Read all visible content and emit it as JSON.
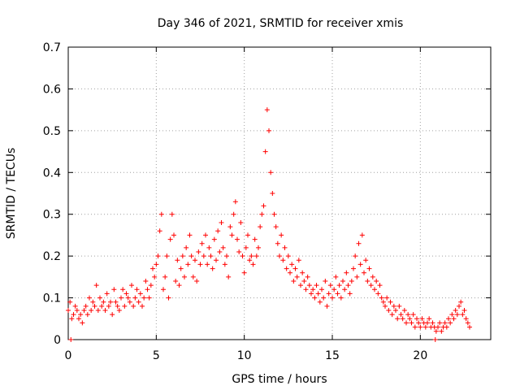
{
  "chart_data": {
    "type": "scatter",
    "title": "Day 346 of 2021, SRMTID for receiver xmis",
    "xlabel": "GPS time / hours",
    "ylabel": "SRMTID / TECUs",
    "xlim": [
      0,
      24
    ],
    "ylim": [
      0,
      0.7
    ],
    "xticks": [
      0,
      5,
      10,
      15,
      20
    ],
    "yticks": [
      0,
      0.1,
      0.2,
      0.3,
      0.4,
      0.5,
      0.6,
      0.7
    ],
    "xtick_labels": [
      "0",
      "5",
      "10",
      "15",
      "20"
    ],
    "ytick_labels": [
      "0",
      "0.1",
      "0.2",
      "0.3",
      "0.4",
      "0.5",
      "0.6",
      "0.7"
    ],
    "grid": true,
    "marker": "+",
    "series": [
      {
        "name": "SRMTID xmis",
        "color": "#ff0000",
        "points": [
          [
            0.0,
            0.07
          ],
          [
            0.1,
            0.09
          ],
          [
            0.2,
            0.05
          ],
          [
            0.3,
            0.06
          ],
          [
            0.4,
            0.08
          ],
          [
            0.5,
            0.07
          ],
          [
            0.6,
            0.05
          ],
          [
            0.7,
            0.06
          ],
          [
            0.8,
            0.04
          ],
          [
            0.9,
            0.07
          ],
          [
            1.0,
            0.08
          ],
          [
            1.1,
            0.06
          ],
          [
            1.2,
            0.1
          ],
          [
            1.3,
            0.07
          ],
          [
            1.4,
            0.09
          ],
          [
            1.5,
            0.08
          ],
          [
            1.6,
            0.13
          ],
          [
            1.7,
            0.07
          ],
          [
            1.8,
            0.1
          ],
          [
            1.9,
            0.08
          ],
          [
            2.0,
            0.09
          ],
          [
            2.1,
            0.07
          ],
          [
            2.2,
            0.11
          ],
          [
            2.3,
            0.08
          ],
          [
            2.4,
            0.09
          ],
          [
            2.5,
            0.06
          ],
          [
            2.6,
            0.12
          ],
          [
            2.7,
            0.09
          ],
          [
            2.8,
            0.08
          ],
          [
            2.9,
            0.07
          ],
          [
            3.0,
            0.1
          ],
          [
            3.1,
            0.12
          ],
          [
            3.2,
            0.08
          ],
          [
            3.3,
            0.11
          ],
          [
            3.4,
            0.1
          ],
          [
            3.5,
            0.09
          ],
          [
            3.6,
            0.13
          ],
          [
            3.7,
            0.08
          ],
          [
            3.8,
            0.1
          ],
          [
            3.9,
            0.12
          ],
          [
            4.0,
            0.09
          ],
          [
            4.1,
            0.11
          ],
          [
            4.2,
            0.08
          ],
          [
            4.3,
            0.1
          ],
          [
            4.4,
            0.14
          ],
          [
            4.5,
            0.12
          ],
          [
            4.6,
            0.1
          ],
          [
            4.7,
            0.13
          ],
          [
            4.8,
            0.17
          ],
          [
            4.9,
            0.15
          ],
          [
            5.0,
            0.18
          ],
          [
            5.1,
            0.2
          ],
          [
            5.2,
            0.26
          ],
          [
            5.3,
            0.3
          ],
          [
            5.4,
            0.12
          ],
          [
            5.5,
            0.15
          ],
          [
            5.6,
            0.2
          ],
          [
            5.7,
            0.1
          ],
          [
            5.8,
            0.24
          ],
          [
            5.9,
            0.3
          ],
          [
            6.0,
            0.25
          ],
          [
            6.1,
            0.14
          ],
          [
            6.2,
            0.19
          ],
          [
            6.3,
            0.13
          ],
          [
            6.4,
            0.17
          ],
          [
            6.5,
            0.2
          ],
          [
            6.6,
            0.15
          ],
          [
            6.7,
            0.22
          ],
          [
            6.8,
            0.18
          ],
          [
            6.9,
            0.25
          ],
          [
            7.0,
            0.2
          ],
          [
            7.1,
            0.15
          ],
          [
            7.2,
            0.19
          ],
          [
            7.3,
            0.14
          ],
          [
            7.4,
            0.21
          ],
          [
            7.5,
            0.18
          ],
          [
            7.6,
            0.23
          ],
          [
            7.7,
            0.2
          ],
          [
            7.8,
            0.25
          ],
          [
            7.9,
            0.18
          ],
          [
            8.0,
            0.22
          ],
          [
            8.1,
            0.2
          ],
          [
            8.2,
            0.17
          ],
          [
            8.3,
            0.24
          ],
          [
            8.4,
            0.19
          ],
          [
            8.5,
            0.26
          ],
          [
            8.6,
            0.21
          ],
          [
            8.7,
            0.28
          ],
          [
            8.8,
            0.22
          ],
          [
            8.9,
            0.18
          ],
          [
            9.0,
            0.2
          ],
          [
            9.1,
            0.15
          ],
          [
            9.2,
            0.27
          ],
          [
            9.3,
            0.25
          ],
          [
            9.4,
            0.3
          ],
          [
            9.5,
            0.33
          ],
          [
            9.6,
            0.24
          ],
          [
            9.7,
            0.21
          ],
          [
            9.8,
            0.28
          ],
          [
            9.9,
            0.2
          ],
          [
            10.0,
            0.16
          ],
          [
            10.1,
            0.22
          ],
          [
            10.2,
            0.25
          ],
          [
            10.3,
            0.19
          ],
          [
            10.4,
            0.2
          ],
          [
            10.5,
            0.18
          ],
          [
            10.6,
            0.24
          ],
          [
            10.7,
            0.2
          ],
          [
            10.8,
            0.22
          ],
          [
            10.9,
            0.27
          ],
          [
            11.0,
            0.3
          ],
          [
            11.1,
            0.32
          ],
          [
            11.2,
            0.45
          ],
          [
            11.3,
            0.55
          ],
          [
            11.4,
            0.5
          ],
          [
            11.5,
            0.4
          ],
          [
            11.6,
            0.35
          ],
          [
            11.7,
            0.3
          ],
          [
            11.8,
            0.27
          ],
          [
            11.9,
            0.23
          ],
          [
            12.0,
            0.2
          ],
          [
            12.1,
            0.25
          ],
          [
            12.2,
            0.19
          ],
          [
            12.3,
            0.22
          ],
          [
            12.4,
            0.17
          ],
          [
            12.5,
            0.2
          ],
          [
            12.6,
            0.16
          ],
          [
            12.7,
            0.18
          ],
          [
            12.8,
            0.14
          ],
          [
            12.9,
            0.17
          ],
          [
            13.0,
            0.15
          ],
          [
            13.1,
            0.19
          ],
          [
            13.2,
            0.13
          ],
          [
            13.3,
            0.16
          ],
          [
            13.4,
            0.14
          ],
          [
            13.5,
            0.12
          ],
          [
            13.6,
            0.15
          ],
          [
            13.7,
            0.13
          ],
          [
            13.8,
            0.11
          ],
          [
            13.9,
            0.12
          ],
          [
            14.0,
            0.1
          ],
          [
            14.1,
            0.13
          ],
          [
            14.2,
            0.11
          ],
          [
            14.3,
            0.09
          ],
          [
            14.4,
            0.12
          ],
          [
            14.5,
            0.1
          ],
          [
            14.6,
            0.14
          ],
          [
            14.7,
            0.08
          ],
          [
            14.8,
            0.11
          ],
          [
            14.9,
            0.13
          ],
          [
            15.0,
            0.1
          ],
          [
            15.1,
            0.12
          ],
          [
            15.2,
            0.15
          ],
          [
            15.3,
            0.11
          ],
          [
            15.4,
            0.13
          ],
          [
            15.5,
            0.1
          ],
          [
            15.6,
            0.14
          ],
          [
            15.7,
            0.12
          ],
          [
            15.8,
            0.16
          ],
          [
            15.9,
            0.13
          ],
          [
            16.0,
            0.11
          ],
          [
            16.1,
            0.14
          ],
          [
            16.2,
            0.17
          ],
          [
            16.3,
            0.2
          ],
          [
            16.4,
            0.15
          ],
          [
            16.5,
            0.23
          ],
          [
            16.6,
            0.18
          ],
          [
            16.7,
            0.25
          ],
          [
            16.8,
            0.16
          ],
          [
            16.9,
            0.19
          ],
          [
            17.0,
            0.14
          ],
          [
            17.1,
            0.17
          ],
          [
            17.2,
            0.13
          ],
          [
            17.3,
            0.15
          ],
          [
            17.4,
            0.12
          ],
          [
            17.5,
            0.14
          ],
          [
            17.6,
            0.11
          ],
          [
            17.7,
            0.13
          ],
          [
            17.8,
            0.1
          ],
          [
            17.9,
            0.09
          ],
          [
            18.0,
            0.08
          ],
          [
            18.1,
            0.1
          ],
          [
            18.2,
            0.07
          ],
          [
            18.3,
            0.09
          ],
          [
            18.4,
            0.06
          ],
          [
            18.5,
            0.08
          ],
          [
            18.6,
            0.07
          ],
          [
            18.7,
            0.05
          ],
          [
            18.8,
            0.08
          ],
          [
            18.9,
            0.06
          ],
          [
            19.0,
            0.05
          ],
          [
            19.1,
            0.07
          ],
          [
            19.2,
            0.04
          ],
          [
            19.3,
            0.06
          ],
          [
            19.4,
            0.05
          ],
          [
            19.5,
            0.04
          ],
          [
            19.6,
            0.06
          ],
          [
            19.7,
            0.03
          ],
          [
            19.8,
            0.05
          ],
          [
            19.9,
            0.04
          ],
          [
            20.0,
            0.03
          ],
          [
            20.1,
            0.05
          ],
          [
            20.2,
            0.04
          ],
          [
            20.3,
            0.03
          ],
          [
            20.4,
            0.04
          ],
          [
            20.5,
            0.05
          ],
          [
            20.6,
            0.03
          ],
          [
            20.7,
            0.04
          ],
          [
            20.8,
            0.03
          ],
          [
            20.9,
            0.02
          ],
          [
            21.0,
            0.03
          ],
          [
            21.1,
            0.04
          ],
          [
            21.2,
            0.02
          ],
          [
            21.3,
            0.03
          ],
          [
            21.4,
            0.04
          ],
          [
            21.5,
            0.03
          ],
          [
            21.6,
            0.05
          ],
          [
            21.7,
            0.04
          ],
          [
            21.8,
            0.06
          ],
          [
            21.9,
            0.05
          ],
          [
            22.0,
            0.07
          ],
          [
            22.1,
            0.06
          ],
          [
            22.2,
            0.08
          ],
          [
            22.3,
            0.09
          ],
          [
            22.4,
            0.06
          ],
          [
            22.5,
            0.07
          ],
          [
            22.6,
            0.05
          ],
          [
            22.7,
            0.04
          ],
          [
            22.8,
            0.03
          ],
          [
            0.15,
            0.0
          ],
          [
            20.85,
            0.0
          ]
        ]
      }
    ]
  }
}
